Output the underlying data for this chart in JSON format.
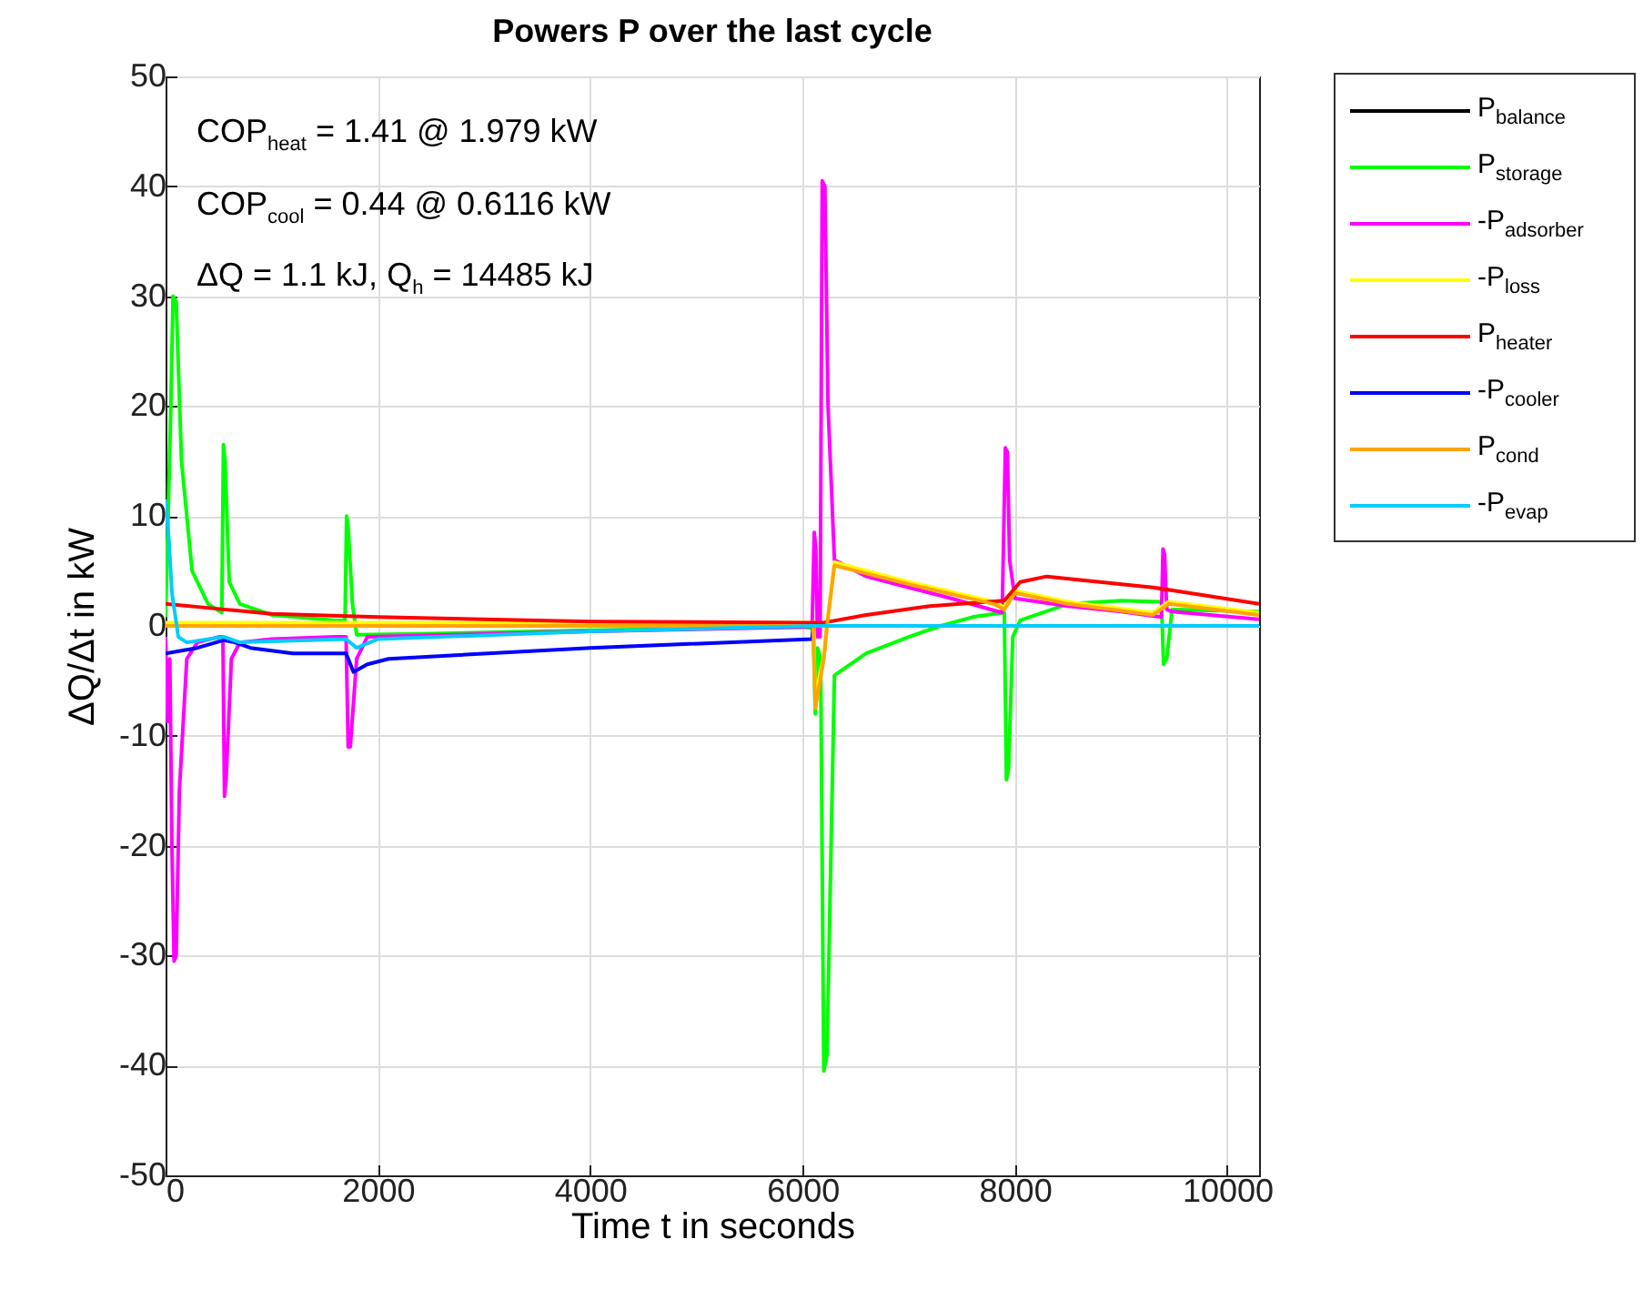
{
  "chart_data": {
    "type": "line",
    "title": "Powers   P over the last cycle",
    "xlabel": "Time   t in seconds",
    "ylabel": "ΔQ/Δt in kW",
    "annotations": [
      "COP$_{heat}$ = 1.41 @ 1.979 kW",
      "COP$_{cool}$ = 0.44 @ 0.6116 kW",
      "ΔQ = 1.1 kJ,     Q$_{h}$ = 14485 kJ"
    ],
    "xlim": [
      0,
      10300
    ],
    "ylim": [
      -50,
      50
    ],
    "xticks": [
      0,
      2000,
      4000,
      6000,
      8000,
      10000
    ],
    "yticks": [
      -50,
      -40,
      -30,
      -20,
      -10,
      0,
      10,
      20,
      30,
      40,
      50
    ],
    "grid": true,
    "legend": "right",
    "line_style": "solid",
    "marker": "none",
    "series": [
      {
        "name": "P$_{balance}$",
        "color": "#000000"
      },
      {
        "name": "P$_{storage}$",
        "color": "#00ff00",
        "x": [
          0,
          50,
          70,
          100,
          150,
          250,
          400,
          530,
          545,
          560,
          600,
          700,
          1000,
          1600,
          1690,
          1705,
          1720,
          1760,
          1800,
          2500,
          4000,
          6000,
          6100,
          6120,
          6140,
          6170,
          6200,
          6230,
          6300,
          6600,
          7000,
          7300,
          7600,
          7880,
          7900,
          7920,
          7940,
          7980,
          8050,
          8500,
          9000,
          9350,
          9380,
          9400,
          9430,
          9480,
          10300
        ],
        "values": [
          0.8,
          20,
          30,
          29.5,
          15,
          5,
          2,
          1.2,
          16.5,
          15,
          4,
          2,
          1,
          0.5,
          0.5,
          10,
          9,
          2,
          -0.8,
          -0.7,
          -0.4,
          -0.1,
          -0.2,
          -8,
          -2,
          -3,
          -40.5,
          -39,
          -4.5,
          -2.5,
          -1,
          0,
          0.8,
          1.2,
          1.2,
          -14,
          -13,
          -1,
          0.5,
          2,
          2.3,
          2.2,
          2.2,
          -3.5,
          -3,
          1.5,
          1.3
        ]
      },
      {
        "name": "-P$_{adsorber}$",
        "color": "#ff00ff",
        "x": [
          0,
          20,
          40,
          60,
          80,
          100,
          130,
          200,
          300,
          500,
          540,
          555,
          570,
          620,
          700,
          1000,
          1600,
          1700,
          1720,
          1740,
          1800,
          1900,
          4000,
          6000,
          6090,
          6110,
          6125,
          6140,
          6165,
          6185,
          6210,
          6240,
          6300,
          6600,
          7000,
          7400,
          7880,
          7910,
          7930,
          7950,
          8000,
          8500,
          9000,
          9380,
          9395,
          9410,
          9430,
          9480,
          10300
        ],
        "values": [
          -1,
          -8.7,
          -3,
          -20,
          -30.5,
          -30,
          -15,
          -3,
          -1.5,
          -1,
          -1,
          -15.5,
          -14,
          -3,
          -1.5,
          -1.2,
          -1,
          -1,
          -11,
          -11,
          -3,
          -1,
          -0.5,
          -0.1,
          0,
          8.5,
          7,
          -1,
          -1,
          40.5,
          40,
          20,
          6,
          4.5,
          3.5,
          2.5,
          1.2,
          16.2,
          15.8,
          6,
          2.5,
          1.8,
          1.3,
          0.8,
          7,
          6.5,
          1.5,
          1.3,
          0.6
        ]
      },
      {
        "name": "-P$_{loss}$",
        "color": "#ffff00",
        "x": [
          0,
          6100,
          6120,
          6200,
          6230,
          6300,
          7000,
          7800,
          7900,
          8000,
          8500,
          9300,
          9450,
          10300
        ],
        "values": [
          0.3,
          0.3,
          -6.5,
          -2.8,
          0.2,
          5.8,
          4,
          2.2,
          1.7,
          3.2,
          2.2,
          1.2,
          2.2,
          1.2
        ]
      },
      {
        "name": "P$_{heater}$",
        "color": "#ff0000",
        "x": [
          0,
          550,
          1000,
          2000,
          4000,
          6000,
          6200,
          6600,
          7200,
          7900,
          8050,
          8300,
          9300,
          9500,
          10300
        ],
        "values": [
          2,
          1.5,
          1.1,
          0.8,
          0.4,
          0.3,
          0.3,
          1,
          1.8,
          2.3,
          4,
          4.5,
          3.5,
          3.2,
          2
        ]
      },
      {
        "name": "-P$_{cooler}$",
        "color": "#0000ff",
        "x": [
          0,
          300,
          550,
          650,
          800,
          1200,
          1700,
          1770,
          1900,
          2100,
          4000,
          6090,
          6100,
          10300
        ],
        "values": [
          -2.5,
          -2,
          -1.3,
          -1.5,
          -2,
          -2.5,
          -2.5,
          -4.2,
          -3.5,
          -3,
          -2,
          -1.2,
          0,
          0
        ]
      },
      {
        "name": "P$_{cond}$",
        "color": "#ffa500",
        "x": [
          0,
          6100,
          6120,
          6200,
          6230,
          6300,
          7000,
          7800,
          7900,
          8000,
          8500,
          9300,
          9450,
          10300
        ],
        "values": [
          0,
          0,
          -7.5,
          -3,
          0,
          5.5,
          3.8,
          2,
          1.5,
          3,
          2,
          1,
          2,
          1
        ]
      },
      {
        "name": "-P$_{evap}$",
        "color": "#00ccff",
        "x": [
          0,
          30,
          60,
          120,
          200,
          550,
          700,
          1700,
          1800,
          2000,
          4000,
          6100,
          10300
        ],
        "values": [
          11.5,
          8,
          3,
          -1,
          -1.5,
          -1,
          -1.5,
          -1.2,
          -2,
          -1.2,
          -0.5,
          0,
          0
        ]
      }
    ]
  }
}
